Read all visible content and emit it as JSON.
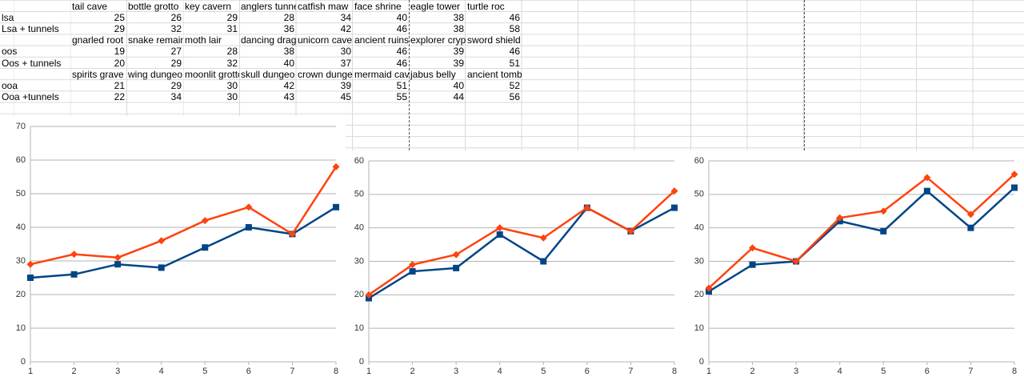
{
  "sheet": {
    "rows": [
      [
        null,
        "tail cave",
        "bottle grotto",
        "key cavern",
        "anglers tunne",
        "catfish maw",
        "face shrine",
        "eagle tower",
        "turtle roc"
      ],
      [
        "lsa",
        25,
        26,
        29,
        28,
        34,
        40,
        38,
        46
      ],
      [
        "Lsa + tunnels",
        29,
        32,
        31,
        36,
        42,
        46,
        38,
        58
      ],
      [
        null,
        "gnarled root",
        "snake remain",
        "moth lair",
        "dancing drag",
        "unicorn cave",
        "ancient ruins",
        "explorer crypt",
        "sword shield maze"
      ],
      [
        "oos",
        19,
        27,
        28,
        38,
        30,
        46,
        39,
        46
      ],
      [
        "Oos + tunnels",
        20,
        29,
        32,
        40,
        37,
        46,
        39,
        51
      ],
      [
        null,
        "spirits grave",
        "wing dungeo",
        "moonlit grotto",
        "skull dungeo",
        "crown dunge",
        "mermaid cav",
        "jabus belly",
        "ancient tomb"
      ],
      [
        "ooa",
        21,
        29,
        30,
        42,
        39,
        51,
        40,
        52
      ],
      [
        "Ooa +tunnels",
        22,
        34,
        30,
        43,
        45,
        55,
        44,
        56
      ]
    ]
  },
  "chart_data": [
    {
      "type": "line",
      "x": [
        1,
        2,
        3,
        4,
        5,
        6,
        7,
        8
      ],
      "xlim": [
        1,
        8
      ],
      "xticks": [
        1,
        2,
        3,
        4,
        5,
        6,
        7,
        8
      ],
      "ylim": [
        0,
        70
      ],
      "yticks": [
        0,
        10,
        20,
        30,
        40,
        50,
        60,
        70
      ],
      "grid": true,
      "series": [
        {
          "color": "#004586",
          "marker": "square",
          "values": [
            25,
            26,
            29,
            28,
            34,
            40,
            38,
            46
          ]
        },
        {
          "color": "#ff420e",
          "marker": "diamond",
          "values": [
            29,
            32,
            31,
            36,
            42,
            46,
            38,
            58
          ]
        }
      ]
    },
    {
      "type": "line",
      "x": [
        1,
        2,
        3,
        4,
        5,
        6,
        7,
        8
      ],
      "xlim": [
        1,
        8
      ],
      "xticks": [
        1,
        2,
        3,
        4,
        5,
        6,
        7,
        8
      ],
      "ylim": [
        0,
        60
      ],
      "yticks": [
        0,
        10,
        20,
        30,
        40,
        50,
        60
      ],
      "grid": true,
      "series": [
        {
          "color": "#004586",
          "marker": "square",
          "values": [
            19,
            27,
            28,
            38,
            30,
            46,
            39,
            46
          ]
        },
        {
          "color": "#ff420e",
          "marker": "diamond",
          "values": [
            20,
            29,
            32,
            40,
            37,
            46,
            39,
            51
          ]
        }
      ]
    },
    {
      "type": "line",
      "x": [
        1,
        2,
        3,
        4,
        5,
        6,
        7,
        8
      ],
      "xlim": [
        1,
        8
      ],
      "xticks": [
        1,
        2,
        3,
        4,
        5,
        6,
        7,
        8
      ],
      "ylim": [
        0,
        60
      ],
      "yticks": [
        0,
        10,
        20,
        30,
        40,
        50,
        60
      ],
      "grid": true,
      "series": [
        {
          "color": "#004586",
          "marker": "square",
          "values": [
            21,
            29,
            30,
            42,
            39,
            51,
            40,
            52
          ]
        },
        {
          "color": "#ff420e",
          "marker": "diamond",
          "values": [
            22,
            34,
            30,
            43,
            45,
            55,
            44,
            56
          ]
        }
      ]
    }
  ]
}
